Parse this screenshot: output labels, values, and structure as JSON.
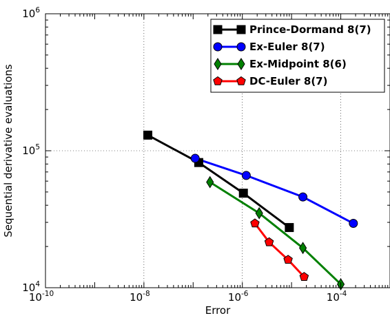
{
  "chart_data": {
    "type": "line",
    "xscale": "log",
    "yscale": "log",
    "xlim": [
      1e-10,
      0.001
    ],
    "ylim": [
      10000,
      1000000
    ],
    "xlabel": "Error",
    "ylabel": "Sequential derivative evaluations",
    "grid": true,
    "legend_position": "top-right",
    "x_ticks": [
      {
        "value": 1e-10,
        "base": "10",
        "exp": "-10"
      },
      {
        "value": 1e-08,
        "base": "10",
        "exp": "-8"
      },
      {
        "value": 1e-06,
        "base": "10",
        "exp": "-6"
      },
      {
        "value": 0.0001,
        "base": "10",
        "exp": "-4"
      }
    ],
    "y_ticks": [
      {
        "value": 10000,
        "base": "10",
        "exp": "4"
      },
      {
        "value": 100000,
        "base": "10",
        "exp": "5"
      },
      {
        "value": 1000000,
        "base": "10",
        "exp": "6"
      }
    ],
    "series": [
      {
        "name": "Prince-Dormand 8(7)",
        "color": "#000000",
        "marker": "square",
        "x": [
          1.2e-08,
          1.3e-07,
          1.05e-06,
          9e-06
        ],
        "y": [
          130000,
          82000,
          49000,
          27500
        ]
      },
      {
        "name": "Ex-Euler 8(7)",
        "color": "#0000ff",
        "marker": "circle",
        "x": [
          1.1e-07,
          1.2e-06,
          1.7e-05,
          0.00018
        ],
        "y": [
          88000,
          66000,
          46000,
          29500
        ]
      },
      {
        "name": "Ex-Midpoint 8(6)",
        "color": "#008000",
        "marker": "diamond",
        "x": [
          2.2e-07,
          2.2e-06,
          1.7e-05,
          0.0001
        ],
        "y": [
          59000,
          35000,
          19500,
          10600
        ]
      },
      {
        "name": "DC-Euler 8(7)",
        "color": "#ff0000",
        "marker": "pentagon",
        "x": [
          1.8e-06,
          3.5e-06,
          8.5e-06,
          1.8e-05
        ],
        "y": [
          29500,
          21500,
          16000,
          12000
        ]
      }
    ]
  }
}
